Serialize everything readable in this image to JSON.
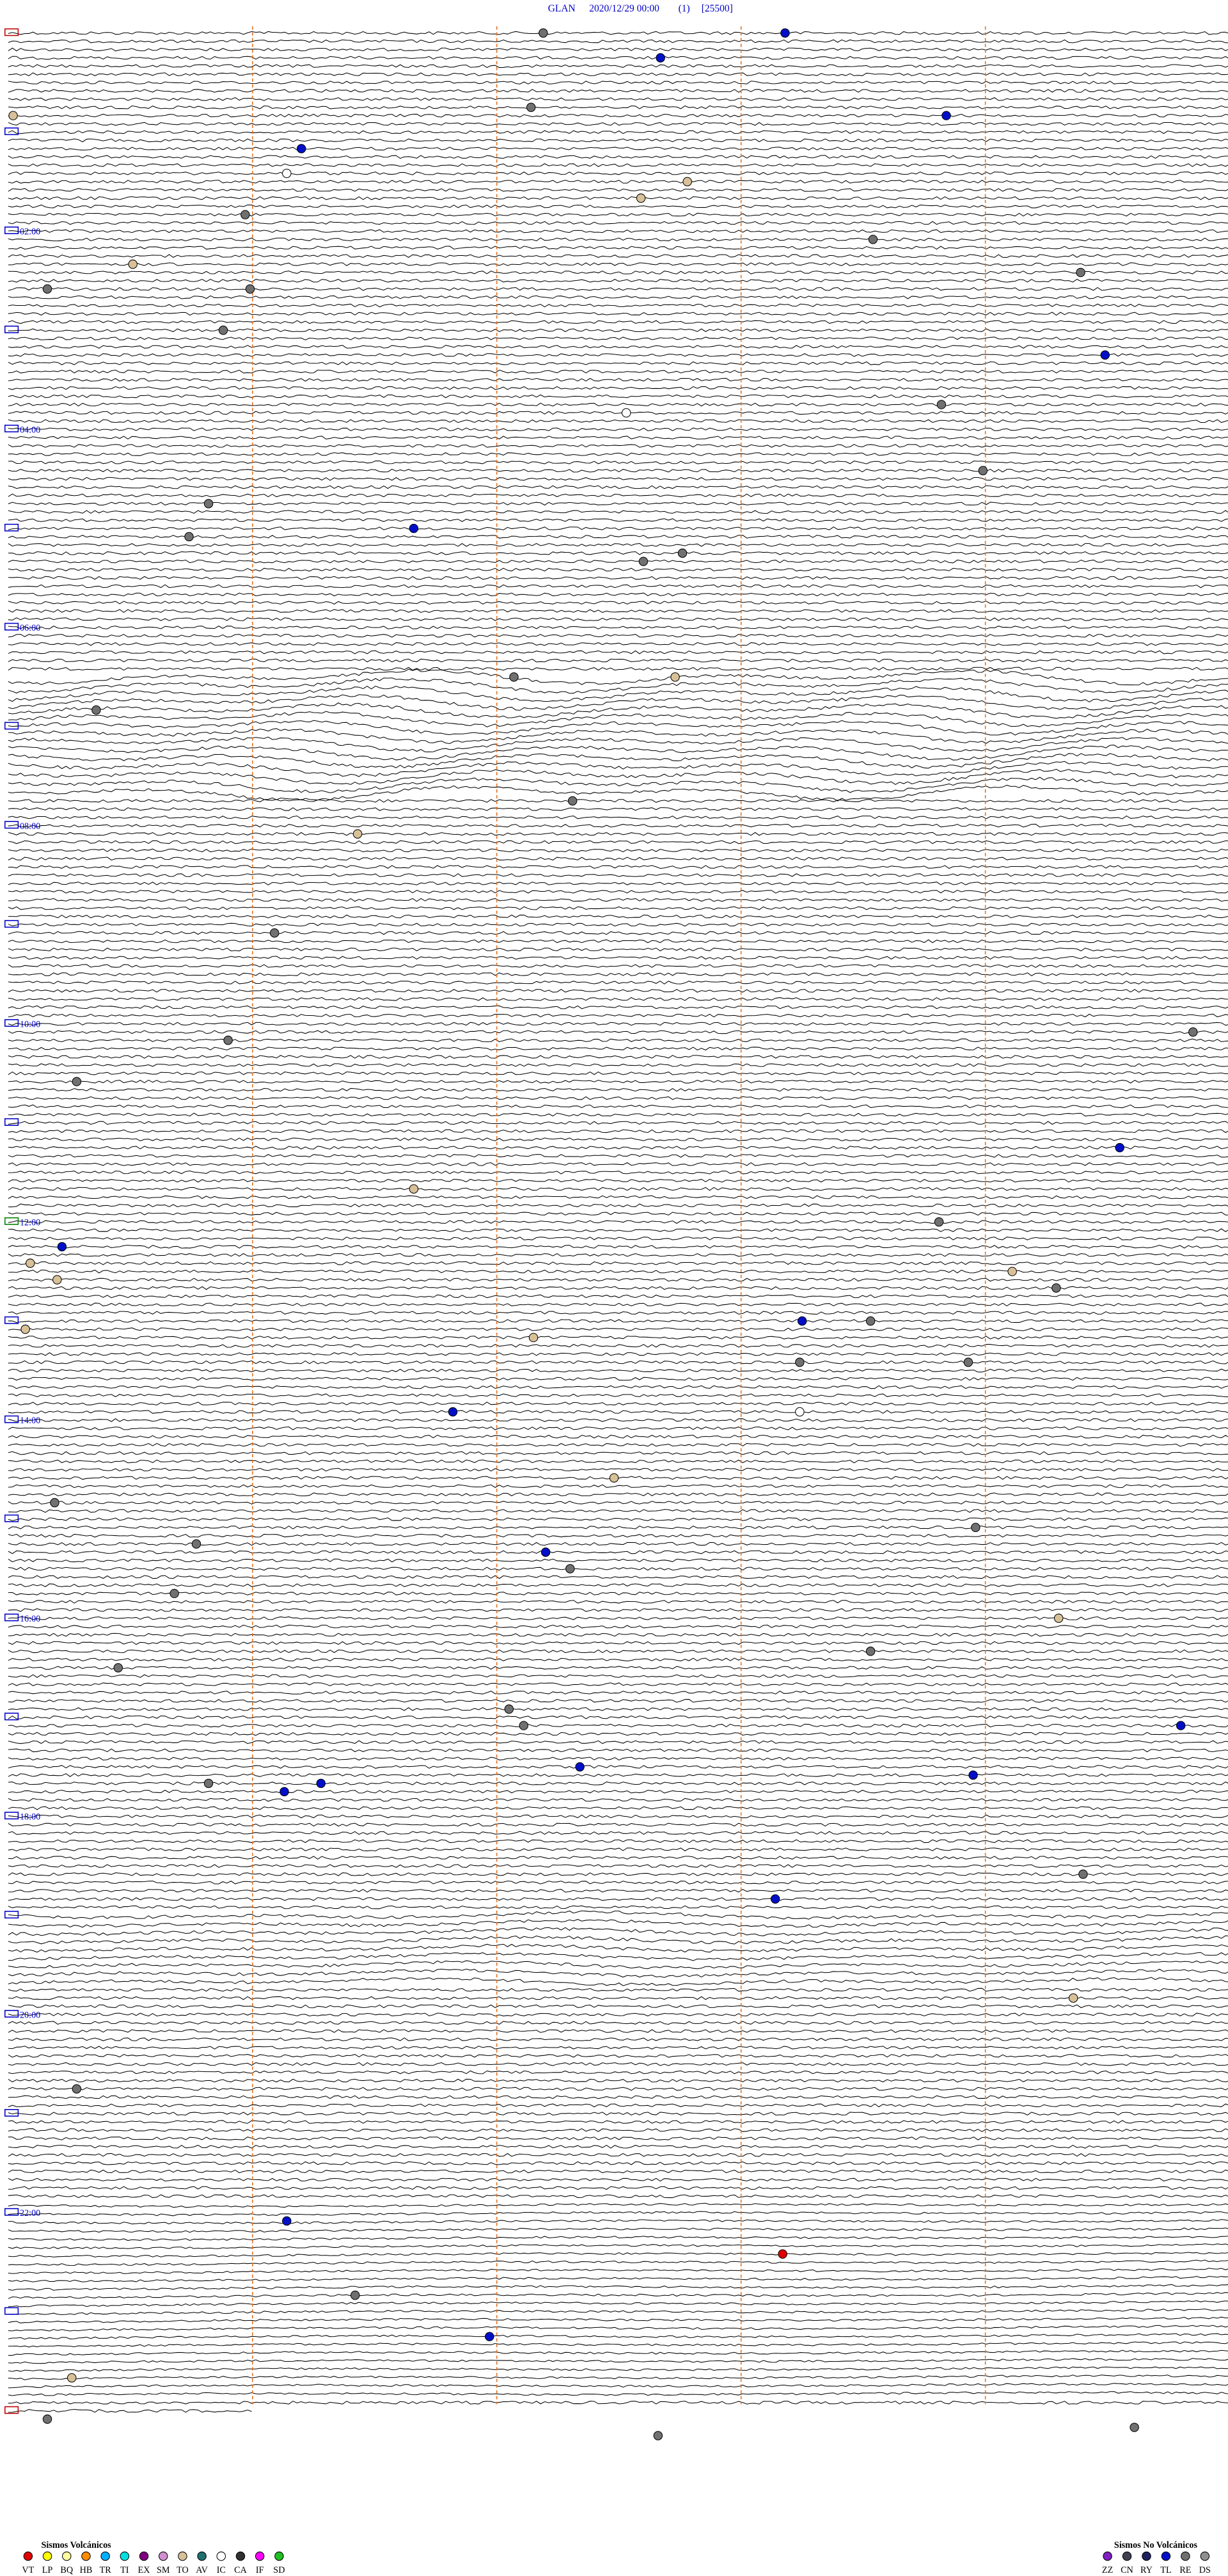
{
  "header": {
    "station": "GLAN",
    "datetime": "2020/12/29 00:00",
    "channel": "(1)",
    "counts": "[25500]"
  },
  "hour_labels": [
    "02:00",
    "04:00",
    "06:00",
    "08:00",
    "10:00",
    "12:00",
    "14:00",
    "16:00",
    "18:00",
    "20:00",
    "22:00"
  ],
  "events": [
    {
      "line": 0,
      "minute": 2.19,
      "type": "RE"
    },
    {
      "line": 0,
      "minute": 3.18,
      "type": "TL"
    },
    {
      "line": 3,
      "minute": 2.67,
      "type": "TL"
    },
    {
      "line": 9,
      "minute": 2.14,
      "type": "RE"
    },
    {
      "line": 10,
      "minute": 3.84,
      "type": "TL"
    },
    {
      "line": 10,
      "minute": 0.02,
      "type": "TO"
    },
    {
      "line": 14,
      "minute": 1.2,
      "type": "TL"
    },
    {
      "line": 17,
      "minute": 1.14,
      "type": "IC"
    },
    {
      "line": 18,
      "minute": 2.78,
      "type": "TO"
    },
    {
      "line": 20,
      "minute": 2.59,
      "type": "TO"
    },
    {
      "line": 22,
      "minute": 0.97,
      "type": "RE"
    },
    {
      "line": 25,
      "minute": 3.54,
      "type": "RE"
    },
    {
      "line": 28,
      "minute": 0.51,
      "type": "TO"
    },
    {
      "line": 29,
      "minute": 4.39,
      "type": "RE"
    },
    {
      "line": 31,
      "minute": 0.16,
      "type": "RE"
    },
    {
      "line": 31,
      "minute": 0.99,
      "type": "RE"
    },
    {
      "line": 36,
      "minute": 0.88,
      "type": "RE"
    },
    {
      "line": 39,
      "minute": 4.49,
      "type": "TL"
    },
    {
      "line": 45,
      "minute": 3.82,
      "type": "RE"
    },
    {
      "line": 46,
      "minute": 2.53,
      "type": "IC"
    },
    {
      "line": 53,
      "minute": 3.99,
      "type": "RE"
    },
    {
      "line": 57,
      "minute": 0.82,
      "type": "RE"
    },
    {
      "line": 60,
      "minute": 1.66,
      "type": "TL"
    },
    {
      "line": 61,
      "minute": 0.74,
      "type": "RE"
    },
    {
      "line": 63,
      "minute": 2.76,
      "type": "RE"
    },
    {
      "line": 64,
      "minute": 2.6,
      "type": "RE"
    },
    {
      "line": 78,
      "minute": 2.07,
      "type": "RE"
    },
    {
      "line": 78,
      "minute": 2.73,
      "type": "TO"
    },
    {
      "line": 82,
      "minute": 0.36,
      "type": "RE"
    },
    {
      "line": 93,
      "minute": 2.31,
      "type": "RE"
    },
    {
      "line": 97,
      "minute": 1.43,
      "type": "TO"
    },
    {
      "line": 109,
      "minute": 1.09,
      "type": "RE"
    },
    {
      "line": 121,
      "minute": 4.85,
      "type": "RE"
    },
    {
      "line": 122,
      "minute": 0.9,
      "type": "RE"
    },
    {
      "line": 127,
      "minute": 0.28,
      "type": "RE"
    },
    {
      "line": 135,
      "minute": 4.55,
      "type": "TL"
    },
    {
      "line": 140,
      "minute": 1.66,
      "type": "TO"
    },
    {
      "line": 144,
      "minute": 3.81,
      "type": "RE"
    },
    {
      "line": 147,
      "minute": 0.22,
      "type": "TL"
    },
    {
      "line": 149,
      "minute": 0.09,
      "type": "TO"
    },
    {
      "line": 150,
      "minute": 4.11,
      "type": "TO"
    },
    {
      "line": 151,
      "minute": 0.2,
      "type": "TO"
    },
    {
      "line": 152,
      "minute": 4.29,
      "type": "RE"
    },
    {
      "line": 156,
      "minute": 3.25,
      "type": "TL"
    },
    {
      "line": 156,
      "minute": 3.53,
      "type": "RE"
    },
    {
      "line": 157,
      "minute": 0.07,
      "type": "TO"
    },
    {
      "line": 158,
      "minute": 2.15,
      "type": "TO"
    },
    {
      "line": 161,
      "minute": 3.24,
      "type": "RE"
    },
    {
      "line": 161,
      "minute": 3.93,
      "type": "RE"
    },
    {
      "line": 167,
      "minute": 1.82,
      "type": "TL"
    },
    {
      "line": 167,
      "minute": 3.24,
      "type": "IC"
    },
    {
      "line": 175,
      "minute": 2.48,
      "type": "TO"
    },
    {
      "line": 178,
      "minute": 0.19,
      "type": "RE"
    },
    {
      "line": 181,
      "minute": 3.96,
      "type": "RE"
    },
    {
      "line": 183,
      "minute": 0.77,
      "type": "RE"
    },
    {
      "line": 184,
      "minute": 2.2,
      "type": "TL"
    },
    {
      "line": 186,
      "minute": 2.3,
      "type": "RE"
    },
    {
      "line": 189,
      "minute": 0.68,
      "type": "RE"
    },
    {
      "line": 192,
      "minute": 4.3,
      "type": "TO"
    },
    {
      "line": 196,
      "minute": 3.53,
      "type": "RE"
    },
    {
      "line": 198,
      "minute": 0.45,
      "type": "RE"
    },
    {
      "line": 203,
      "minute": 2.05,
      "type": "RE"
    },
    {
      "line": 205,
      "minute": 4.8,
      "type": "TL"
    },
    {
      "line": 205,
      "minute": 2.11,
      "type": "RE"
    },
    {
      "line": 210,
      "minute": 2.34,
      "type": "TL"
    },
    {
      "line": 211,
      "minute": 3.95,
      "type": "TL"
    },
    {
      "line": 212,
      "minute": 1.28,
      "type": "TL"
    },
    {
      "line": 212,
      "minute": 0.82,
      "type": "RE"
    },
    {
      "line": 213,
      "minute": 1.13,
      "type": "TL"
    },
    {
      "line": 223,
      "minute": 4.4,
      "type": "RE"
    },
    {
      "line": 226,
      "minute": 3.14,
      "type": "TL"
    },
    {
      "line": 238,
      "minute": 4.36,
      "type": "TO"
    },
    {
      "line": 249,
      "minute": 0.28,
      "type": "RE"
    },
    {
      "line": 265,
      "minute": 1.14,
      "type": "TL"
    },
    {
      "line": 269,
      "minute": 3.17,
      "type": "VT"
    },
    {
      "line": 274,
      "minute": 1.42,
      "type": "RE"
    },
    {
      "line": 279,
      "minute": 1.97,
      "type": "TL"
    },
    {
      "line": 284,
      "minute": 0.26,
      "type": "TO"
    },
    {
      "line": 289,
      "minute": 0.16,
      "type": "RE"
    },
    {
      "line": 291,
      "minute": 2.66,
      "type": "RE"
    },
    {
      "line": 290,
      "minute": 4.61,
      "type": "RE"
    }
  ],
  "legend": {
    "volcanic": {
      "title": "Sismos Volcánicos",
      "items": [
        {
          "code": "VT",
          "color": "#e00000"
        },
        {
          "code": "LP",
          "color": "#ffff00"
        },
        {
          "code": "BQ",
          "color": "#ffffa0"
        },
        {
          "code": "HB",
          "color": "#ff8c00"
        },
        {
          "code": "TR",
          "color": "#00b0ff"
        },
        {
          "code": "TI",
          "color": "#00e0e0"
        },
        {
          "code": "EX",
          "color": "#800080"
        },
        {
          "code": "SM",
          "color": "#d090d0"
        },
        {
          "code": "TO",
          "color": "#d8c098"
        },
        {
          "code": "AV",
          "color": "#207070"
        },
        {
          "code": "IC",
          "color": "#ffffff"
        },
        {
          "code": "CA",
          "color": "#303030"
        },
        {
          "code": "IF",
          "color": "#ff00ff"
        },
        {
          "code": "SD",
          "color": "#20c020"
        }
      ]
    },
    "non_volcanic": {
      "title": "Sismos No Volcánicos",
      "items": [
        {
          "code": "ZZ",
          "color": "#8020c0"
        },
        {
          "code": "CN",
          "color": "#404050"
        },
        {
          "code": "RY",
          "color": "#202060"
        },
        {
          "code": "TL",
          "color": "#0010c8"
        },
        {
          "code": "RE",
          "color": "#707070"
        },
        {
          "code": "DS",
          "color": "#909090"
        }
      ]
    }
  }
}
